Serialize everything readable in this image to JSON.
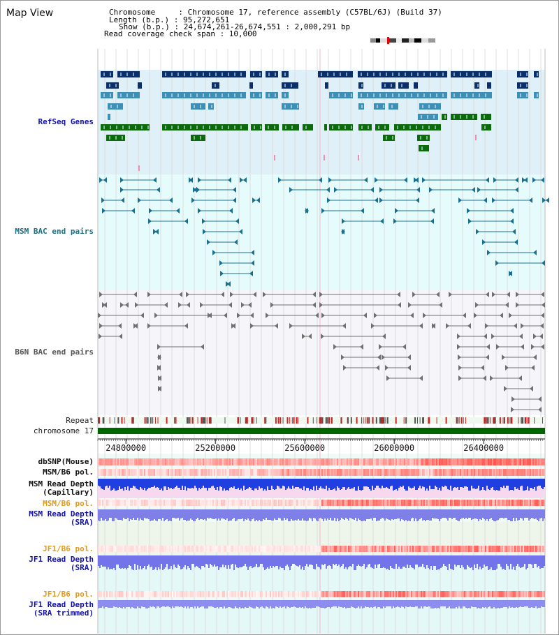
{
  "header": {
    "view_title": "Map View",
    "info_lines": [
      "Chromosome     : Chromosome 17, reference assembly (C57BL/6J) (Build 37)",
      "Length (b.p.) : 95,272,651",
      "Show (b.p.) : 24,674,261-26,674,551 : 2,000,291 bp",
      "Read coverage check span : 10,000"
    ]
  },
  "colors": {
    "refseq_bg": "#dff0f8",
    "refseq_dark": "#0a2f6b",
    "refseq_mid": "#3d8fb5",
    "refseq_green": "#0b6b0b",
    "msm_bac_bg": "#e6fbfb",
    "msm_bac_line": "#1a7090",
    "b6n_bac_bg": "#f6f6fa",
    "b6n_bac_line": "#707070",
    "repeat_red": "#cc2222",
    "chromosome_green": "#006600",
    "depth_blue": "#1f3fe0",
    "polymorph_red": "#e03030"
  },
  "tracks": {
    "refseq_genes": "RefSeq Genes",
    "msm_bac_end_pairs": "MSM BAC end pairs",
    "b6n_bac_end_pairs": "B6N BAC end pairs",
    "repeat": "Repeat",
    "chromosome": "chromosome 17"
  },
  "ruler": {
    "unit": "bp",
    "min": 24674261,
    "max": 26674551,
    "ticks": [
      "24800000",
      "25200000",
      "25600000",
      "26000000",
      "26400000"
    ]
  },
  "bottom_tracks": [
    {
      "label": "dbSNP(Mouse)",
      "color": "#111111"
    },
    {
      "label": "MSM/B6 pol.",
      "color": "#111111"
    },
    {
      "label": "MSM Read Depth\n(Capillary)",
      "color": "#111111"
    },
    {
      "label": "MSM/B6 pol.",
      "color": "#e39a16"
    },
    {
      "label": "MSM Read Depth\n(SRA)",
      "color": "#1111aa"
    },
    {
      "label": "JF1/B6 pol.",
      "color": "#e39a16"
    },
    {
      "label": "JF1 Read Depth\n(SRA)",
      "color": "#1111aa"
    },
    {
      "label": "JF1/B6 pol.",
      "color": "#e39a16"
    },
    {
      "label": "JF1 Read Depth\n(SRA trimmed)",
      "color": "#1111aa"
    }
  ]
}
